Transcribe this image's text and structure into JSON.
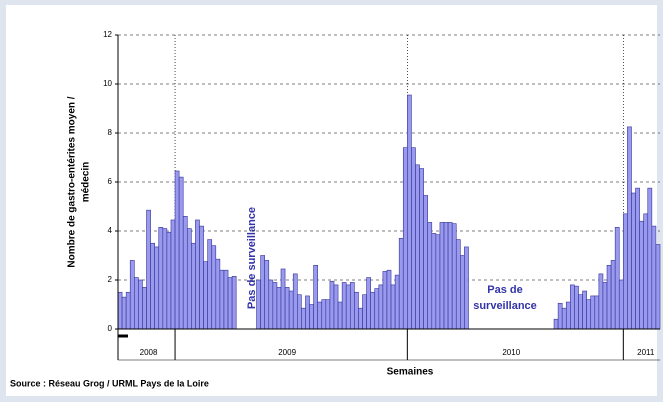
{
  "chart_data": {
    "type": "bar",
    "y_label_lines": [
      "Nombre de gastro-entérites moyen /",
      "médecin"
    ],
    "x_label": "Semaines",
    "source": "Source : Réseau Grog / URML Pays de la Loire",
    "annotations": [
      "Pas de surveillance",
      "Pas de",
      "surveillance"
    ],
    "categories": [
      null,
      null,
      null,
      null,
      null,
      null,
      null,
      "2008",
      null,
      null,
      null,
      null,
      null,
      null,
      null,
      null,
      null,
      null,
      null,
      null,
      null,
      null,
      null,
      null,
      null,
      null,
      null,
      null,
      null,
      null,
      null,
      null,
      null,
      null,
      null,
      null,
      null,
      null,
      null,
      null,
      null,
      "2009",
      null,
      null,
      null,
      null,
      null,
      null,
      null,
      null,
      null,
      null,
      null,
      null,
      null,
      null,
      null,
      null,
      null,
      null,
      null,
      null,
      null,
      null,
      null,
      null,
      null,
      null,
      null,
      null,
      null,
      null,
      null,
      null,
      null,
      null,
      null,
      null,
      null,
      null,
      null,
      null,
      null,
      null,
      null,
      null,
      null,
      null,
      null,
      null,
      null,
      null,
      null,
      null,
      null,
      null,
      "2010",
      null,
      null,
      null,
      null,
      null,
      null,
      null,
      null,
      null,
      null,
      null,
      null,
      null,
      null,
      null,
      null,
      null,
      null,
      null,
      null,
      null,
      null,
      null,
      null,
      null,
      null,
      null,
      null,
      null,
      null,
      null,
      null,
      "2011",
      null,
      null,
      null
    ],
    "values": [
      1.5,
      1.3,
      1.5,
      2.8,
      2.1,
      2.0,
      1.7,
      4.85,
      3.5,
      3.35,
      4.15,
      4.1,
      3.95,
      4.45,
      6.45,
      6.2,
      4.6,
      4.1,
      3.5,
      4.45,
      4.2,
      2.75,
      3.65,
      3.4,
      2.85,
      2.4,
      2.4,
      2.1,
      2.15,
      null,
      null,
      null,
      null,
      null,
      2.0,
      3.0,
      2.8,
      2.0,
      1.9,
      1.7,
      2.45,
      1.7,
      1.55,
      2.25,
      1.4,
      0.85,
      1.35,
      1.0,
      2.6,
      1.1,
      1.2,
      1.2,
      1.95,
      1.8,
      1.1,
      1.9,
      1.8,
      1.9,
      1.5,
      0.85,
      1.4,
      2.1,
      1.5,
      1.65,
      1.8,
      2.35,
      2.4,
      1.8,
      2.2,
      3.7,
      7.4,
      9.55,
      7.4,
      6.7,
      6.55,
      5.45,
      4.35,
      3.9,
      3.85,
      4.35,
      4.35,
      4.35,
      4.3,
      3.65,
      3.0,
      3.35,
      null,
      null,
      null,
      null,
      null,
      null,
      null,
      null,
      null,
      null,
      null,
      null,
      null,
      null,
      null,
      null,
      null,
      null,
      null,
      null,
      null,
      0.4,
      1.05,
      0.85,
      1.1,
      1.8,
      1.75,
      1.4,
      1.55,
      1.2,
      1.35,
      1.35,
      2.25,
      1.9,
      2.6,
      2.8,
      4.15,
      2.0,
      4.7,
      8.25,
      5.55,
      5.75,
      4.4,
      4.7,
      5.75,
      4.2,
      3.45
    ],
    "color": "#9999ee",
    "edge_color": "#333399",
    "ylim": [
      0,
      12
    ],
    "yticks": [
      0,
      2,
      4,
      6,
      8,
      10,
      12
    ],
    "grid": true
  }
}
